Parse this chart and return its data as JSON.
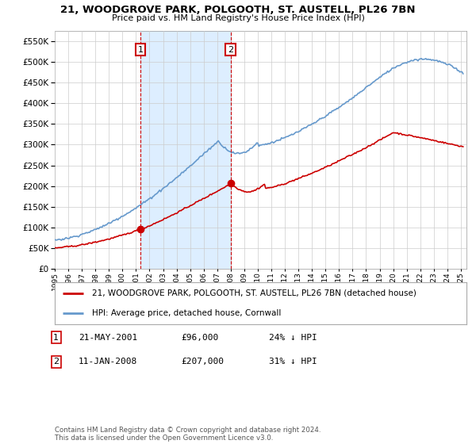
{
  "title": "21, WOODGROVE PARK, POLGOOTH, ST. AUSTELL, PL26 7BN",
  "subtitle": "Price paid vs. HM Land Registry's House Price Index (HPI)",
  "legend_entry1": "21, WOODGROVE PARK, POLGOOTH, ST. AUSTELL, PL26 7BN (detached house)",
  "legend_entry2": "HPI: Average price, detached house, Cornwall",
  "annotation1_label": "1",
  "annotation1_date": "21-MAY-2001",
  "annotation1_price": "£96,000",
  "annotation1_hpi": "24% ↓ HPI",
  "annotation2_label": "2",
  "annotation2_date": "11-JAN-2008",
  "annotation2_price": "£207,000",
  "annotation2_hpi": "31% ↓ HPI",
  "footnote": "Contains HM Land Registry data © Crown copyright and database right 2024.\nThis data is licensed under the Open Government Licence v3.0.",
  "ylim": [
    0,
    575000
  ],
  "yticks": [
    0,
    50000,
    100000,
    150000,
    200000,
    250000,
    300000,
    350000,
    400000,
    450000,
    500000,
    550000
  ],
  "red_color": "#cc0000",
  "blue_color": "#6699cc",
  "shade_color": "#ddeeff",
  "vline_color": "#cc0000",
  "bg_color": "#ffffff",
  "grid_color": "#cccccc"
}
